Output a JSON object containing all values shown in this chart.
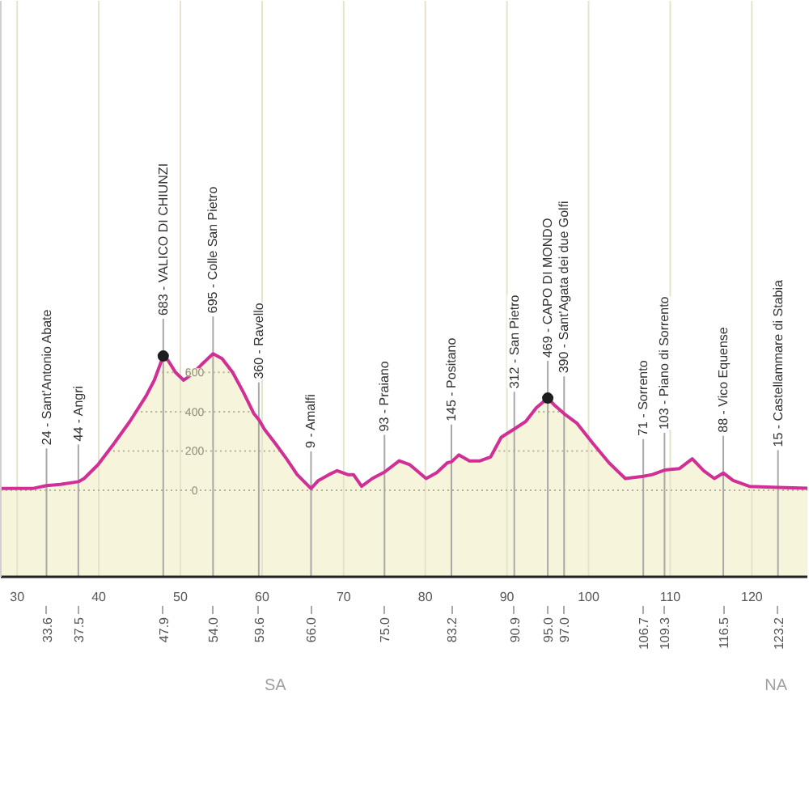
{
  "chart_data": {
    "type": "area",
    "xlim": [
      28.0,
      126.9
    ],
    "xticks": [
      30,
      40,
      50,
      60,
      70,
      80,
      90,
      100,
      110,
      120
    ],
    "x2lim": [
      28.0,
      126.9
    ],
    "x2ticks": [
      33.6,
      37.5,
      47.9,
      {
        "value": 54.0,
        "label": "54.0"
      },
      59.6,
      {
        "value": 66.0,
        "label": "66.0"
      },
      {
        "value": 75.0,
        "label": "75.0"
      },
      83.2,
      90.9,
      {
        "value": 95.0,
        "label": "95.0"
      },
      {
        "value": 97.0,
        "label": "97.0"
      },
      106.7,
      109.3,
      116.5,
      123.2
    ],
    "ylim": [
      -440,
      2490
    ],
    "yticks": [
      0,
      200,
      400,
      600
    ],
    "grid": true,
    "bands": [
      {
        "axis": "y",
        "from": -440,
        "to": 0,
        "color": "#f6f4da"
      }
    ],
    "series": [
      {
        "color": "#d12f95",
        "x": [
          28.0,
          30.0,
          32.0,
          33.6,
          35.3,
          37.5,
          38.2,
          39.9,
          41.9,
          43.8,
          45.8,
          46.8,
          47.9,
          48.5,
          49.4,
          50.4,
          51.4,
          52.6,
          54.0,
          55.1,
          56.4,
          57.7,
          59.0,
          59.6,
          60.3,
          61.6,
          63.0,
          64.3,
          66.0,
          66.9,
          68.2,
          69.2,
          70.5,
          71.2,
          72.2,
          73.5,
          75.0,
          76.8,
          78.1,
          80.1,
          81.4,
          82.7,
          83.2,
          84.1,
          85.4,
          86.7,
          88.0,
          89.3,
          90.9,
          92.3,
          93.6,
          95.0,
          95.9,
          97.0,
          98.6,
          100.5,
          102.5,
          104.5,
          106.7,
          107.8,
          109.3,
          111.1,
          112.7,
          114.1,
          115.4,
          116.5,
          117.7,
          119.7,
          123.2,
          126.9
        ],
        "values": [
          10,
          10,
          10,
          24,
          30,
          44,
          60,
          130,
          240,
          350,
          480,
          560,
          683,
          660,
          600,
          560,
          590,
          640,
          695,
          670,
          600,
          500,
          390,
          360,
          310,
          240,
          160,
          80,
          9,
          50,
          80,
          100,
          80,
          80,
          20,
          60,
          93,
          150,
          130,
          60,
          90,
          140,
          145,
          180,
          150,
          150,
          170,
          270,
          312,
          350,
          420,
          469,
          430,
          390,
          340,
          240,
          140,
          60,
          71,
          80,
          103,
          110,
          160,
          100,
          60,
          88,
          50,
          20,
          15,
          10
        ]
      },
      {
        "type": "scatter",
        "color": "#1e1e1e",
        "marker": "circle",
        "x": [
          47.9,
          95.0
        ],
        "values": [
          683,
          469
        ]
      }
    ],
    "ref_lines": [
      {
        "axis": "x",
        "value": 33.6,
        "label": "24 - Sant'Antonio Abate"
      },
      {
        "axis": "x",
        "value": 37.5,
        "label": "44 - Angri"
      },
      {
        "axis": "x",
        "value": 47.9,
        "label": "683 - VALICO DI CHIUNZI"
      },
      {
        "axis": "x",
        "value": 54.0,
        "label": "695 - Colle San Pietro"
      },
      {
        "axis": "x",
        "value": 59.6,
        "label": "360 - Ravello"
      },
      {
        "axis": "x",
        "value": 66.0,
        "label": "9 - Amalfi"
      },
      {
        "axis": "x",
        "value": 75.0,
        "label": "93 - Praiano"
      },
      {
        "axis": "x",
        "value": 83.2,
        "label": "145 - Positano"
      },
      {
        "axis": "x",
        "value": 90.9,
        "label": "312 - San Pietro"
      },
      {
        "axis": "x",
        "value": 95.0,
        "label": "469 - CAPO DI MONDO"
      },
      {
        "axis": "x",
        "value": 97.0,
        "label": "390 - Sant'Agata dei due Golfi"
      },
      {
        "axis": "x",
        "value": 106.7,
        "label": "71 - Sorrento"
      },
      {
        "axis": "x",
        "value": 109.3,
        "label": "103 - Piano di Sorrento"
      },
      {
        "axis": "x",
        "value": 116.5,
        "label": "88 - Vico Equense"
      },
      {
        "axis": "x",
        "value": 123.2,
        "label": "15 - Castellammare di Stabia"
      }
    ],
    "annotations": [
      "SA",
      "NA"
    ]
  }
}
